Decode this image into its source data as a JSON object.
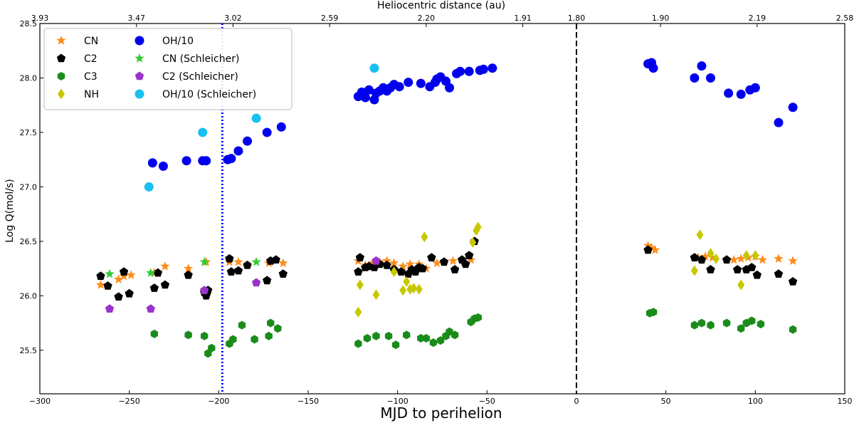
{
  "chart_data": {
    "type": "scatter",
    "xlabel": "MJD to perihelion",
    "ylabel": "Log Q(mol/s)",
    "top_xlabel": "Heliocentric distance (au)",
    "xlim": [
      -300,
      150
    ],
    "ylim": [
      25.1,
      28.5
    ],
    "x_ticks": [
      -300,
      -250,
      -200,
      -150,
      -100,
      -50,
      0,
      50,
      100,
      150
    ],
    "x_tick_labels": [
      "−300",
      "−250",
      "−200",
      "−150",
      "−100",
      "−50",
      "0",
      "50",
      "100",
      "150"
    ],
    "y_ticks": [
      25.5,
      26.0,
      26.5,
      27.0,
      27.5,
      28.0,
      28.5
    ],
    "y_tick_labels": [
      "25.5",
      "26.0",
      "26.5",
      "27.0",
      "27.5",
      "28.0",
      "28.5"
    ],
    "top_ticks": [
      {
        "x": -300,
        "label": "3.93"
      },
      {
        "x": -246,
        "label": "3.47"
      },
      {
        "x": -192,
        "label": "3.02"
      },
      {
        "x": -138,
        "label": "2.59"
      },
      {
        "x": -84,
        "label": "2.20"
      },
      {
        "x": -30,
        "label": "1.91"
      },
      {
        "x": 0,
        "label": "1.80"
      },
      {
        "x": 47,
        "label": "1.90"
      },
      {
        "x": 101,
        "label": "2.19"
      },
      {
        "x": 150,
        "label": "2.58"
      }
    ],
    "vlines": [
      {
        "x": -198,
        "style": "dotted",
        "color": "#0000ff"
      },
      {
        "x": 0,
        "style": "dashed",
        "color": "#000000"
      }
    ],
    "legend_position": "top-left",
    "series": [
      {
        "name": "CN",
        "marker": "star",
        "color": "#ff8c1a",
        "points": [
          [
            -266,
            26.1
          ],
          [
            -262,
            26.09
          ],
          [
            -256,
            26.15
          ],
          [
            -253,
            26.18
          ],
          [
            -249,
            26.19
          ],
          [
            -236,
            26.21
          ],
          [
            -230,
            26.27
          ],
          [
            -217,
            26.25
          ],
          [
            -207,
            26.31
          ],
          [
            -194,
            26.31
          ],
          [
            -189,
            26.31
          ],
          [
            -172,
            26.3
          ],
          [
            -164,
            26.3
          ],
          [
            -122,
            26.32
          ],
          [
            -118,
            26.28
          ],
          [
            -114,
            26.3
          ],
          [
            -110,
            26.31
          ],
          [
            -106,
            26.32
          ],
          [
            -102,
            26.3
          ],
          [
            -97,
            26.27
          ],
          [
            -93,
            26.29
          ],
          [
            -88,
            26.29
          ],
          [
            -84,
            26.25
          ],
          [
            -78,
            26.3
          ],
          [
            -74,
            26.31
          ],
          [
            -69,
            26.32
          ],
          [
            -63,
            26.31
          ],
          [
            -59,
            26.33
          ],
          [
            40,
            26.46
          ],
          [
            42,
            26.44
          ],
          [
            44,
            26.42
          ],
          [
            68,
            26.35
          ],
          [
            72,
            26.36
          ],
          [
            76,
            26.35
          ],
          [
            88,
            26.33
          ],
          [
            92,
            26.34
          ],
          [
            96,
            26.35
          ],
          [
            100,
            26.36
          ],
          [
            104,
            26.33
          ],
          [
            113,
            26.34
          ],
          [
            121,
            26.32
          ]
        ]
      },
      {
        "name": "C2",
        "marker": "pentagon",
        "color": "#000000",
        "points": [
          [
            -266,
            26.18
          ],
          [
            -262,
            26.09
          ],
          [
            -256,
            25.99
          ],
          [
            -253,
            26.22
          ],
          [
            -250,
            26.02
          ],
          [
            -236,
            26.07
          ],
          [
            -234,
            26.21
          ],
          [
            -230,
            26.1
          ],
          [
            -217,
            26.19
          ],
          [
            -208,
            26.03
          ],
          [
            -207,
            26.0
          ],
          [
            -206,
            26.05
          ],
          [
            -194,
            26.34
          ],
          [
            -193,
            26.22
          ],
          [
            -189,
            26.23
          ],
          [
            -184,
            26.28
          ],
          [
            -173,
            26.14
          ],
          [
            -171,
            26.32
          ],
          [
            -168,
            26.33
          ],
          [
            -164,
            26.2
          ],
          [
            -122,
            26.22
          ],
          [
            -121,
            26.35
          ],
          [
            -118,
            26.26
          ],
          [
            -116,
            26.27
          ],
          [
            -113,
            26.26
          ],
          [
            -110,
            26.29
          ],
          [
            -106,
            26.28
          ],
          [
            -102,
            26.24
          ],
          [
            -98,
            26.22
          ],
          [
            -94,
            26.2
          ],
          [
            -92,
            26.24
          ],
          [
            -90,
            26.22
          ],
          [
            -88,
            26.26
          ],
          [
            -86,
            26.25
          ],
          [
            -81,
            26.35
          ],
          [
            -74,
            26.31
          ],
          [
            -68,
            26.24
          ],
          [
            -64,
            26.33
          ],
          [
            -60,
            26.37
          ],
          [
            -57,
            26.5
          ],
          [
            -62,
            26.29
          ],
          [
            40,
            26.42
          ],
          [
            66,
            26.35
          ],
          [
            70,
            26.33
          ],
          [
            75,
            26.24
          ],
          [
            84,
            26.33
          ],
          [
            90,
            26.24
          ],
          [
            95,
            26.24
          ],
          [
            98,
            26.26
          ],
          [
            101,
            26.19
          ],
          [
            113,
            26.2
          ],
          [
            121,
            26.13
          ]
        ]
      },
      {
        "name": "C3",
        "marker": "hexagon",
        "color": "#1a8c1a",
        "points": [
          [
            -236,
            25.65
          ],
          [
            -217,
            25.64
          ],
          [
            -208,
            25.63
          ],
          [
            -206,
            25.47
          ],
          [
            -204,
            25.52
          ],
          [
            -194,
            25.56
          ],
          [
            -192,
            25.6
          ],
          [
            -187,
            25.73
          ],
          [
            -180,
            25.6
          ],
          [
            -172,
            25.63
          ],
          [
            -171,
            25.75
          ],
          [
            -167,
            25.7
          ],
          [
            -122,
            25.56
          ],
          [
            -117,
            25.61
          ],
          [
            -112,
            25.63
          ],
          [
            -105,
            25.63
          ],
          [
            -101,
            25.55
          ],
          [
            -95,
            25.64
          ],
          [
            -87,
            25.61
          ],
          [
            -84,
            25.61
          ],
          [
            -80,
            25.57
          ],
          [
            -76,
            25.59
          ],
          [
            -73,
            25.63
          ],
          [
            -71,
            25.67
          ],
          [
            -68,
            25.64
          ],
          [
            -59,
            25.76
          ],
          [
            -57,
            25.79
          ],
          [
            -55,
            25.8
          ],
          [
            41,
            25.84
          ],
          [
            43,
            25.85
          ],
          [
            66,
            25.73
          ],
          [
            70,
            25.75
          ],
          [
            75,
            25.73
          ],
          [
            84,
            25.75
          ],
          [
            92,
            25.7
          ],
          [
            95,
            25.75
          ],
          [
            98,
            25.77
          ],
          [
            103,
            25.74
          ],
          [
            121,
            25.69
          ]
        ]
      },
      {
        "name": "NH",
        "marker": "diamond",
        "color": "#c8c800",
        "points": [
          [
            -122,
            25.85
          ],
          [
            -121,
            26.1
          ],
          [
            -112,
            26.01
          ],
          [
            -102,
            26.22
          ],
          [
            -97,
            26.05
          ],
          [
            -95,
            26.13
          ],
          [
            -93,
            26.06
          ],
          [
            -91,
            26.07
          ],
          [
            -88,
            26.06
          ],
          [
            -85,
            26.54
          ],
          [
            -58,
            26.49
          ],
          [
            -56,
            26.6
          ],
          [
            -55,
            26.63
          ],
          [
            66,
            26.23
          ],
          [
            69,
            26.56
          ],
          [
            75,
            26.39
          ],
          [
            78,
            26.34
          ],
          [
            92,
            26.1
          ],
          [
            95,
            26.37
          ],
          [
            100,
            26.37
          ]
        ]
      },
      {
        "name": "OH/10",
        "marker": "circle",
        "color": "#0000ee",
        "points": [
          [
            -237,
            27.22
          ],
          [
            -231,
            27.19
          ],
          [
            -218,
            27.24
          ],
          [
            -209,
            27.24
          ],
          [
            -207,
            27.24
          ],
          [
            -195,
            27.25
          ],
          [
            -193,
            27.26
          ],
          [
            -189,
            27.33
          ],
          [
            -184,
            27.42
          ],
          [
            -173,
            27.5
          ],
          [
            -165,
            27.55
          ],
          [
            -122,
            27.83
          ],
          [
            -120,
            27.87
          ],
          [
            -118,
            27.82
          ],
          [
            -116,
            27.89
          ],
          [
            -113,
            27.8
          ],
          [
            -112,
            27.86
          ],
          [
            -110,
            27.88
          ],
          [
            -108,
            27.91
          ],
          [
            -106,
            27.88
          ],
          [
            -104,
            27.91
          ],
          [
            -102,
            27.94
          ],
          [
            -99,
            27.92
          ],
          [
            -94,
            27.96
          ],
          [
            -87,
            27.95
          ],
          [
            -82,
            27.92
          ],
          [
            -79,
            27.96
          ],
          [
            -78,
            27.99
          ],
          [
            -76,
            28.01
          ],
          [
            -73,
            27.97
          ],
          [
            -71,
            27.91
          ],
          [
            -67,
            28.04
          ],
          [
            -65,
            28.06
          ],
          [
            -60,
            28.06
          ],
          [
            -54,
            28.07
          ],
          [
            -52,
            28.08
          ],
          [
            -47,
            28.09
          ],
          [
            40,
            28.13
          ],
          [
            42,
            28.14
          ],
          [
            43,
            28.09
          ],
          [
            66,
            28.0
          ],
          [
            70,
            28.11
          ],
          [
            75,
            28.0
          ],
          [
            85,
            27.86
          ],
          [
            92,
            27.85
          ],
          [
            97,
            27.89
          ],
          [
            100,
            27.91
          ],
          [
            113,
            27.59
          ],
          [
            121,
            27.73
          ]
        ]
      },
      {
        "name": "CN (Schleicher)",
        "marker": "star",
        "color": "#33cc33",
        "points": [
          [
            -261,
            26.2
          ],
          [
            -238,
            26.21
          ],
          [
            -208,
            26.31
          ],
          [
            -179,
            26.31
          ]
        ]
      },
      {
        "name": "C2 (Schleicher)",
        "marker": "pentagon",
        "color": "#9933cc",
        "points": [
          [
            -261,
            25.88
          ],
          [
            -238,
            25.88
          ],
          [
            -208,
            26.05
          ],
          [
            -179,
            26.12
          ],
          [
            -112,
            26.32
          ]
        ]
      },
      {
        "name": "OH/10 (Schleicher)",
        "marker": "circle",
        "color": "#19c0f0",
        "points": [
          [
            -239,
            27.0
          ],
          [
            -209,
            27.5
          ],
          [
            -179,
            27.63
          ],
          [
            -113,
            28.09
          ]
        ]
      }
    ]
  }
}
